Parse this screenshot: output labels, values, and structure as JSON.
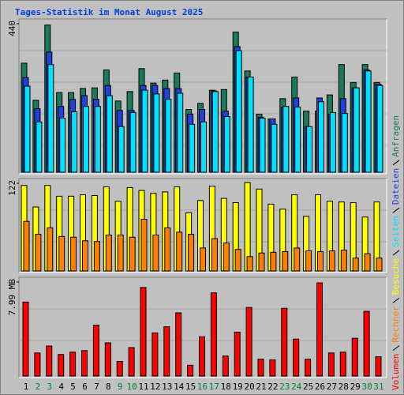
{
  "title": "Tages-Statistik im Monat August 2025",
  "chart_data": [
    {
      "type": "bar",
      "series": [
        {
          "name": "Anfragen",
          "color": "#1a7a5a",
          "values": [
            323,
            213,
            436,
            236,
            236,
            248,
            250,
            303,
            211,
            239,
            307,
            264,
            273,
            294,
            186,
            204,
            243,
            245,
            415,
            300,
            172,
            158,
            218,
            282,
            181,
            181,
            229,
            319,
            266,
            319,
            266
          ]
        },
        {
          "name": "Dateien",
          "color": "#2040e0",
          "values": [
            280,
            188,
            356,
            195,
            216,
            227,
            216,
            257,
            183,
            183,
            257,
            257,
            248,
            248,
            172,
            186,
            241,
            181,
            372,
            282,
            163,
            158,
            193,
            220,
            135,
            220,
            172,
            218,
            250,
            303,
            261
          ]
        },
        {
          "name": "Seiten",
          "color": "#00e0ff",
          "values": [
            255,
            149,
            319,
            160,
            179,
            195,
            195,
            227,
            135,
            177,
            243,
            232,
            216,
            234,
            142,
            149,
            239,
            165,
            360,
            282,
            160,
            142,
            195,
            193,
            135,
            209,
            177,
            174,
            250,
            300,
            257
          ]
        }
      ],
      "ylim": [
        0,
        440
      ],
      "yticks": [
        440
      ]
    },
    {
      "type": "bar",
      "series": [
        {
          "name": "Besuche",
          "color": "#ffff00",
          "values": [
            119,
            89,
            119,
            104,
            104,
            106,
            105,
            117,
            97,
            116,
            112,
            108,
            110,
            117,
            81,
            98,
            118,
            101,
            95,
            123,
            114,
            93,
            86,
            106,
            76,
            106,
            97,
            96,
            95,
            75,
            96
          ]
        },
        {
          "name": "Rechner",
          "color": "#ff8000",
          "values": [
            69,
            51,
            60,
            48,
            47,
            42,
            41,
            50,
            50,
            47,
            72,
            50,
            60,
            54,
            51,
            32,
            45,
            39,
            30,
            20,
            25,
            26,
            27,
            32,
            28,
            27,
            28,
            29,
            18,
            24,
            18
          ]
        }
      ],
      "ylim": [
        0,
        122
      ],
      "yticks": [
        122
      ]
    },
    {
      "type": "bar",
      "categories": [
        "1",
        "2",
        "3",
        "4",
        "5",
        "6",
        "7",
        "8",
        "9",
        "10",
        "11",
        "12",
        "13",
        "14",
        "15",
        "16",
        "17",
        "18",
        "19",
        "20",
        "21",
        "22",
        "23",
        "24",
        "25",
        "26",
        "27",
        "28",
        "29",
        "30",
        "31"
      ],
      "category_colors": [
        "#000000",
        "#008040",
        "#008040",
        "#000000",
        "#000000",
        "#000000",
        "#000000",
        "#000000",
        "#008040",
        "#008040",
        "#000000",
        "#000000",
        "#000000",
        "#000000",
        "#000000",
        "#008040",
        "#008040",
        "#000000",
        "#000000",
        "#000000",
        "#000000",
        "#000000",
        "#008040",
        "#008040",
        "#000000",
        "#000000",
        "#000000",
        "#000000",
        "#000000",
        "#008040",
        "#008040"
      ],
      "series": [
        {
          "name": "Volumen",
          "color": "#ff0000",
          "values": [
            6.29,
            1.96,
            2.55,
            1.83,
            2.03,
            2.16,
            4.32,
            2.82,
            1.24,
            2.42,
            7.53,
            3.67,
            4.19,
            5.37,
            0.92,
            3.34,
            7.07,
            1.7,
            3.73,
            5.83,
            1.44,
            1.38,
            5.76,
            3.14,
            1.44,
            7.92,
            1.96,
            2.03,
            3.21,
            5.5,
            1.64
          ]
        }
      ],
      "ylim": [
        0,
        7.99
      ],
      "yticks": [
        {
          "value": 7.99,
          "label": "7.99 MB"
        }
      ]
    }
  ]
}
